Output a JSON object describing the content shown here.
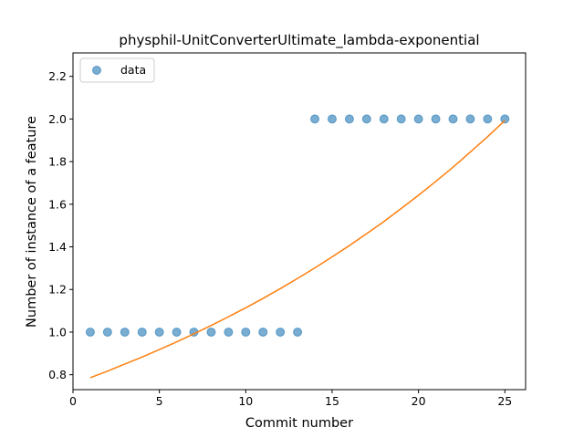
{
  "chart_data": {
    "type": "scatter",
    "title": "physphil-UnitConverterUltimate_lambda-exponential",
    "xlabel": "Commit number",
    "ylabel": "Number of instance of a feature",
    "xlim": [
      0,
      26.2
    ],
    "ylim": [
      0.73,
      2.31
    ],
    "x_ticks": [
      0,
      5,
      10,
      15,
      20,
      25
    ],
    "y_ticks": [
      0.8,
      1.0,
      1.2,
      1.4,
      1.6,
      1.8,
      2.0,
      2.2
    ],
    "legend": {
      "position": "top-left",
      "entries": [
        "data"
      ]
    },
    "grid": false,
    "series": [
      {
        "name": "data",
        "kind": "scatter",
        "color": "#1f77b4",
        "x": [
          1,
          2,
          3,
          4,
          5,
          6,
          7,
          8,
          9,
          10,
          11,
          12,
          13,
          14,
          15,
          16,
          17,
          18,
          19,
          20,
          21,
          22,
          23,
          24,
          25
        ],
        "y": [
          1,
          1,
          1,
          1,
          1,
          1,
          1,
          1,
          1,
          1,
          1,
          1,
          1,
          2,
          2,
          2,
          2,
          2,
          2,
          2,
          2,
          2,
          2,
          2,
          2
        ]
      },
      {
        "kind": "line",
        "color": "#ff7f0e",
        "x": [
          1,
          2,
          3,
          4,
          5,
          6,
          7,
          8,
          9,
          10,
          11,
          12,
          13,
          14,
          15,
          16,
          17,
          18,
          19,
          20,
          21,
          22,
          23,
          24,
          25
        ],
        "y": [
          0.786,
          0.817,
          0.85,
          0.883,
          0.918,
          0.954,
          0.992,
          1.031,
          1.072,
          1.114,
          1.158,
          1.204,
          1.252,
          1.301,
          1.353,
          1.406,
          1.462,
          1.519,
          1.58,
          1.642,
          1.707,
          1.774,
          1.845,
          1.917,
          1.993
        ]
      }
    ]
  }
}
